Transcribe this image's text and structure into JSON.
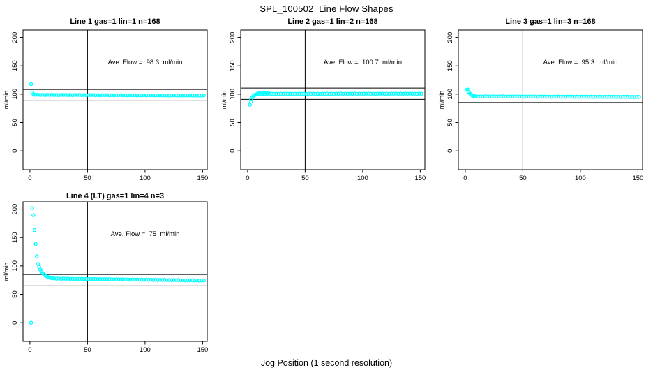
{
  "title": "SPL_100502  Line Flow Shapes",
  "xlabel": "Jog Position (1 second resolution)",
  "colors": {
    "point": "#00ffff",
    "axis": "#000000",
    "background": "#ffffff"
  },
  "chart_data": [
    {
      "type": "scatter",
      "title": "Line 1 gas=1 lin=1 n=168",
      "line": 1,
      "gas": 1,
      "lin": 1,
      "n": 168,
      "annotation": "Ave. Flow =  98.3  ml/min",
      "ave_flow_ml_min": 98.3,
      "ylabel": "ml/min",
      "xticks": [
        0,
        50,
        100,
        150
      ],
      "yticks": [
        0,
        50,
        100,
        150,
        200
      ],
      "xlim": [
        -6,
        154
      ],
      "ylim": [
        -33,
        213
      ],
      "vline_x": 50,
      "hlines_y": [
        108.3,
        88.3
      ],
      "grid": false,
      "points": [
        [
          1,
          117.8
        ],
        [
          2,
          103.2
        ],
        [
          3,
          100.1
        ],
        [
          4,
          99.3
        ],
        [
          5,
          98.9
        ],
        [
          7,
          99.0
        ],
        [
          9,
          98.5
        ],
        [
          11,
          98.8
        ],
        [
          13,
          98.4
        ],
        [
          15,
          98.9
        ],
        [
          17,
          98.7
        ],
        [
          19,
          98.9
        ],
        [
          21,
          98.4
        ],
        [
          23,
          98.7
        ],
        [
          25,
          98.3
        ],
        [
          27,
          98.8
        ],
        [
          29,
          98.6
        ],
        [
          31,
          98.8
        ],
        [
          33,
          98.3
        ],
        [
          35,
          98.6
        ],
        [
          37,
          98.2
        ],
        [
          39,
          98.7
        ],
        [
          41,
          98.5
        ],
        [
          43,
          98.7
        ],
        [
          45,
          98.2
        ],
        [
          47,
          98.5
        ],
        [
          49,
          98.1
        ],
        [
          51,
          98.6
        ],
        [
          53,
          98.4
        ],
        [
          55,
          98.6
        ],
        [
          57,
          98.1
        ],
        [
          59,
          98.4
        ],
        [
          61,
          98.0
        ],
        [
          63,
          98.5
        ],
        [
          65,
          98.3
        ],
        [
          67,
          98.5
        ],
        [
          69,
          98.0
        ],
        [
          71,
          98.3
        ],
        [
          73,
          97.9
        ],
        [
          75,
          98.4
        ],
        [
          77,
          98.2
        ],
        [
          79,
          98.4
        ],
        [
          81,
          97.9
        ],
        [
          83,
          98.2
        ],
        [
          85,
          97.8
        ],
        [
          87,
          98.3
        ],
        [
          89,
          98.0
        ],
        [
          91,
          98.3
        ],
        [
          93,
          97.8
        ],
        [
          95,
          98.1
        ],
        [
          97,
          97.7
        ],
        [
          99,
          98.2
        ],
        [
          101,
          97.9
        ],
        [
          103,
          98.2
        ],
        [
          105,
          97.7
        ],
        [
          107,
          98.0
        ],
        [
          109,
          97.6
        ],
        [
          111,
          98.1
        ],
        [
          113,
          97.8
        ],
        [
          115,
          98.1
        ],
        [
          117,
          97.6
        ],
        [
          119,
          97.9
        ],
        [
          121,
          97.5
        ],
        [
          123,
          98.0
        ],
        [
          125,
          97.7
        ],
        [
          127,
          98.0
        ],
        [
          129,
          97.5
        ],
        [
          131,
          97.8
        ],
        [
          133,
          97.4
        ],
        [
          135,
          97.9
        ],
        [
          137,
          97.6
        ],
        [
          139,
          97.9
        ],
        [
          141,
          97.4
        ],
        [
          143,
          97.7
        ],
        [
          145,
          97.3
        ],
        [
          147,
          97.8
        ],
        [
          149,
          97.5
        ],
        [
          151,
          97.8
        ]
      ]
    },
    {
      "type": "scatter",
      "title": "Line 2 gas=1 lin=2 n=168",
      "line": 2,
      "gas": 1,
      "lin": 2,
      "n": 168,
      "annotation": "Ave. Flow =  100.7  ml/min",
      "ave_flow_ml_min": 100.7,
      "ylabel": "ml/min",
      "xticks": [
        0,
        50,
        100,
        150
      ],
      "yticks": [
        0,
        50,
        100,
        150,
        200
      ],
      "xlim": [
        -6,
        154
      ],
      "ylim": [
        -33,
        213
      ],
      "vline_x": 50,
      "hlines_y": [
        110.7,
        90.7
      ],
      "grid": false,
      "points": [
        [
          2,
          81.2
        ],
        [
          3,
          87.0
        ],
        [
          3,
          91.0
        ],
        [
          4,
          94.5
        ],
        [
          5,
          96.8
        ],
        [
          6,
          98.2
        ],
        [
          7,
          99.2
        ],
        [
          8,
          99.8
        ],
        [
          10,
          102.0
        ],
        [
          12,
          102.3
        ],
        [
          14,
          102.0
        ],
        [
          16,
          102.3
        ],
        [
          18,
          102.1
        ],
        [
          9,
          100.8
        ],
        [
          11,
          100.3
        ],
        [
          13,
          100.6
        ],
        [
          15,
          100.2
        ],
        [
          17,
          100.7
        ],
        [
          19,
          100.5
        ],
        [
          21,
          100.8
        ],
        [
          23,
          100.4
        ],
        [
          25,
          100.7
        ],
        [
          27,
          100.3
        ],
        [
          29,
          100.8
        ],
        [
          31,
          100.6
        ],
        [
          33,
          100.9
        ],
        [
          35,
          100.4
        ],
        [
          37,
          100.7
        ],
        [
          39,
          100.3
        ],
        [
          41,
          100.8
        ],
        [
          43,
          100.6
        ],
        [
          45,
          100.9
        ],
        [
          47,
          100.4
        ],
        [
          49,
          100.7
        ],
        [
          51,
          100.3
        ],
        [
          53,
          100.8
        ],
        [
          55,
          100.6
        ],
        [
          57,
          100.9
        ],
        [
          59,
          100.4
        ],
        [
          61,
          100.7
        ],
        [
          63,
          100.3
        ],
        [
          65,
          100.8
        ],
        [
          67,
          100.6
        ],
        [
          69,
          100.9
        ],
        [
          71,
          100.4
        ],
        [
          73,
          100.8
        ],
        [
          75,
          100.4
        ],
        [
          77,
          100.9
        ],
        [
          79,
          100.7
        ],
        [
          81,
          101.0
        ],
        [
          83,
          100.5
        ],
        [
          85,
          100.8
        ],
        [
          87,
          100.4
        ],
        [
          89,
          100.9
        ],
        [
          91,
          100.7
        ],
        [
          93,
          101.0
        ],
        [
          95,
          100.5
        ],
        [
          97,
          100.8
        ],
        [
          99,
          100.4
        ],
        [
          101,
          100.9
        ],
        [
          103,
          100.7
        ],
        [
          105,
          101.0
        ],
        [
          107,
          100.5
        ],
        [
          109,
          100.8
        ],
        [
          111,
          100.4
        ],
        [
          113,
          100.9
        ],
        [
          115,
          100.7
        ],
        [
          117,
          101.0
        ],
        [
          119,
          100.5
        ],
        [
          121,
          100.8
        ],
        [
          123,
          100.5
        ],
        [
          125,
          101.0
        ],
        [
          127,
          100.8
        ],
        [
          129,
          101.1
        ],
        [
          131,
          100.6
        ],
        [
          133,
          100.9
        ],
        [
          135,
          100.5
        ],
        [
          137,
          101.0
        ],
        [
          139,
          100.8
        ],
        [
          141,
          101.1
        ],
        [
          143,
          100.6
        ],
        [
          145,
          100.9
        ],
        [
          147,
          100.5
        ],
        [
          149,
          101.0
        ],
        [
          151,
          100.8
        ]
      ]
    },
    {
      "type": "scatter",
      "title": "Line 3 gas=1 lin=3 n=168",
      "line": 3,
      "gas": 1,
      "lin": 3,
      "n": 168,
      "annotation": "Ave. Flow =  95.3  ml/min",
      "ave_flow_ml_min": 95.3,
      "ylabel": "ml/min",
      "xticks": [
        0,
        50,
        100,
        150
      ],
      "yticks": [
        0,
        50,
        100,
        150,
        200
      ],
      "xlim": [
        -6,
        154
      ],
      "ylim": [
        -33,
        213
      ],
      "vline_x": 50,
      "hlines_y": [
        105.3,
        85.3
      ],
      "grid": false,
      "points": [
        [
          1,
          107.5
        ],
        [
          2,
          108.3
        ],
        [
          3,
          103.8
        ],
        [
          4,
          101.2
        ],
        [
          5,
          99.3
        ],
        [
          6,
          97.8
        ],
        [
          7,
          96.9
        ],
        [
          8,
          96.3
        ],
        [
          9,
          96.3
        ],
        [
          11,
          95.7
        ],
        [
          13,
          96.0
        ],
        [
          15,
          95.6
        ],
        [
          17,
          96.1
        ],
        [
          19,
          95.9
        ],
        [
          21,
          96.2
        ],
        [
          23,
          95.7
        ],
        [
          25,
          96.0
        ],
        [
          27,
          95.5
        ],
        [
          29,
          96.0
        ],
        [
          31,
          95.8
        ],
        [
          33,
          96.1
        ],
        [
          35,
          95.6
        ],
        [
          37,
          95.9
        ],
        [
          39,
          95.5
        ],
        [
          41,
          96.0
        ],
        [
          43,
          95.7
        ],
        [
          45,
          96.0
        ],
        [
          47,
          95.5
        ],
        [
          49,
          95.8
        ],
        [
          51,
          95.4
        ],
        [
          53,
          95.9
        ],
        [
          55,
          95.7
        ],
        [
          57,
          96.0
        ],
        [
          59,
          95.5
        ],
        [
          61,
          95.7
        ],
        [
          63,
          95.3
        ],
        [
          65,
          95.8
        ],
        [
          67,
          95.6
        ],
        [
          69,
          95.9
        ],
        [
          71,
          95.4
        ],
        [
          73,
          95.7
        ],
        [
          75,
          95.3
        ],
        [
          77,
          95.7
        ],
        [
          79,
          95.5
        ],
        [
          81,
          95.8
        ],
        [
          83,
          95.3
        ],
        [
          85,
          95.6
        ],
        [
          87,
          95.2
        ],
        [
          89,
          95.7
        ],
        [
          91,
          95.5
        ],
        [
          93,
          95.7
        ],
        [
          95,
          95.2
        ],
        [
          97,
          95.5
        ],
        [
          99,
          95.1
        ],
        [
          101,
          95.6
        ],
        [
          103,
          95.4
        ],
        [
          105,
          95.7
        ],
        [
          107,
          95.2
        ],
        [
          109,
          95.5
        ],
        [
          111,
          95.0
        ],
        [
          113,
          95.5
        ],
        [
          115,
          95.3
        ],
        [
          117,
          95.6
        ],
        [
          119,
          95.1
        ],
        [
          121,
          95.4
        ],
        [
          123,
          95.0
        ],
        [
          125,
          95.5
        ],
        [
          127,
          95.2
        ],
        [
          129,
          95.5
        ],
        [
          131,
          95.0
        ],
        [
          133,
          95.3
        ],
        [
          135,
          94.9
        ],
        [
          137,
          95.4
        ],
        [
          139,
          95.2
        ],
        [
          141,
          95.5
        ],
        [
          143,
          94.9
        ],
        [
          145,
          95.2
        ],
        [
          147,
          94.8
        ],
        [
          149,
          95.3
        ],
        [
          151,
          95.1
        ]
      ]
    },
    {
      "type": "scatter",
      "title": "Line 4 (LT) gas=1 lin=4 n=3",
      "line": 4,
      "gas": 1,
      "lin": 4,
      "n": 3,
      "annotation": "Ave. Flow =  75  ml/min",
      "ave_flow_ml_min": 75,
      "ylabel": "ml/min",
      "xticks": [
        0,
        50,
        100,
        150
      ],
      "yticks": [
        0,
        50,
        100,
        150,
        200
      ],
      "xlim": [
        -6,
        154
      ],
      "ylim": [
        -33,
        213
      ],
      "vline_x": 50,
      "hlines_y": [
        85,
        65
      ],
      "grid": false,
      "points": [
        [
          1,
          0
        ],
        [
          2,
          202
        ],
        [
          3,
          189.5
        ],
        [
          4,
          163
        ],
        [
          5,
          138.5
        ],
        [
          6,
          117
        ],
        [
          7,
          103.5
        ],
        [
          8,
          98
        ],
        [
          9,
          93.5
        ],
        [
          10,
          90
        ],
        [
          11,
          87.5
        ],
        [
          12,
          85.3
        ],
        [
          13,
          83.6
        ],
        [
          14,
          82.2
        ],
        [
          15,
          81.1
        ],
        [
          16,
          80.2
        ],
        [
          17,
          79.5
        ],
        [
          18,
          78.9
        ],
        [
          19,
          78.4
        ],
        [
          21,
          78.1
        ],
        [
          23,
          77.5
        ],
        [
          25,
          77.8
        ],
        [
          27,
          77.3
        ],
        [
          29,
          77.8
        ],
        [
          31,
          77.5
        ],
        [
          33,
          77.7
        ],
        [
          35,
          77.2
        ],
        [
          37,
          77.4
        ],
        [
          39,
          77.0
        ],
        [
          41,
          77.4
        ],
        [
          43,
          77.2
        ],
        [
          45,
          77.4
        ],
        [
          47,
          76.9
        ],
        [
          49,
          77.1
        ],
        [
          51,
          76.7
        ],
        [
          53,
          77.1
        ],
        [
          55,
          76.9
        ],
        [
          57,
          77.1
        ],
        [
          59,
          76.6
        ],
        [
          61,
          76.8
        ],
        [
          63,
          76.4
        ],
        [
          65,
          76.8
        ],
        [
          67,
          76.6
        ],
        [
          69,
          76.8
        ],
        [
          71,
          76.3
        ],
        [
          73,
          76.5
        ],
        [
          75,
          76.1
        ],
        [
          77,
          76.5
        ],
        [
          79,
          76.3
        ],
        [
          81,
          76.5
        ],
        [
          83,
          75.9
        ],
        [
          85,
          76.2
        ],
        [
          87,
          75.7
        ],
        [
          89,
          76.2
        ],
        [
          91,
          75.9
        ],
        [
          93,
          76.2
        ],
        [
          95,
          75.6
        ],
        [
          97,
          75.9
        ],
        [
          99,
          75.4
        ],
        [
          101,
          75.9
        ],
        [
          103,
          75.6
        ],
        [
          105,
          75.9
        ],
        [
          107,
          75.3
        ],
        [
          109,
          75.6
        ],
        [
          111,
          75.1
        ],
        [
          113,
          75.6
        ],
        [
          115,
          75.3
        ],
        [
          117,
          75.6
        ],
        [
          119,
          75.0
        ],
        [
          121,
          75.3
        ],
        [
          123,
          74.8
        ],
        [
          125,
          75.3
        ],
        [
          127,
          75.0
        ],
        [
          129,
          75.3
        ],
        [
          131,
          74.7
        ],
        [
          133,
          74.9
        ],
        [
          135,
          74.5
        ],
        [
          137,
          74.9
        ],
        [
          139,
          74.7
        ],
        [
          141,
          74.9
        ],
        [
          143,
          74.4
        ],
        [
          145,
          74.6
        ],
        [
          147,
          74.2
        ],
        [
          149,
          74.6
        ],
        [
          151,
          74.4
        ]
      ]
    }
  ]
}
